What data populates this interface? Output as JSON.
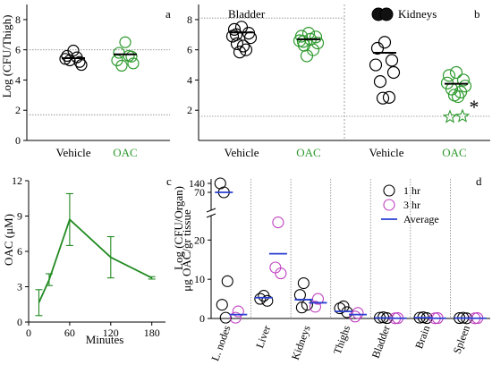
{
  "colors": {
    "black": "#000000",
    "green": "#2e9a2e",
    "magenta": "#c040c0",
    "blue": "#2a3fd0",
    "line_green": "#228b22",
    "dotted": "#888888"
  },
  "chart_data": [
    {
      "panel": "a",
      "type": "scatter",
      "ylabel": "Log (CFU/Thigh)",
      "ylim": [
        0,
        9
      ],
      "yticks": [
        "0",
        "2",
        "4",
        "6",
        "8"
      ],
      "reference_lines": [
        6.0,
        1.7
      ],
      "groups": [
        {
          "name": "Vehicle",
          "color": "black",
          "values": [
            5.95,
            5.6,
            5.2,
            5.4,
            5.0,
            5.3,
            5.5
          ],
          "mean": 5.45
        },
        {
          "name": "OAC",
          "color": "green",
          "values": [
            6.5,
            5.8,
            5.55,
            5.3,
            5.1,
            4.95,
            5.6
          ],
          "mean": 5.7
        }
      ]
    },
    {
      "panel": "b",
      "type": "scatter",
      "ylabel": "Log (CFU/Organ)",
      "ylim": [
        0,
        9
      ],
      "yticks": [
        "2",
        "4",
        "6",
        "8"
      ],
      "section_titles": [
        "Bladder",
        "Kidneys"
      ],
      "reference_lines": [
        8.1,
        1.6
      ],
      "significance_marker": "*",
      "groups": [
        {
          "organ": "Bladder",
          "name": "Vehicle",
          "color": "black",
          "values": [
            7.5,
            7.35,
            7.1,
            6.9,
            6.8,
            6.4,
            6.0,
            5.85,
            6.25,
            7.0
          ],
          "mean": 7.15
        },
        {
          "organ": "Bladder",
          "name": "OAC",
          "color": "green",
          "values": [
            7.1,
            6.9,
            6.85,
            6.6,
            6.45,
            6.3,
            6.0,
            5.6,
            6.7,
            6.55
          ],
          "mean": 6.7
        },
        {
          "organ": "Kidneys",
          "name": "Vehicle",
          "color": "black",
          "values": [
            6.5,
            6.1,
            5.3,
            5.0,
            4.5,
            3.9,
            2.85,
            2.8
          ],
          "mean": 5.8,
          "above_range_count": 2
        },
        {
          "organ": "Kidneys",
          "name": "OAC",
          "color": "green",
          "values": [
            4.5,
            4.3,
            4.0,
            3.8,
            3.6,
            3.4,
            3.2,
            3.0,
            2.9,
            1.6,
            1.55
          ],
          "mean": 3.75
        }
      ]
    },
    {
      "panel": "c",
      "type": "line",
      "xlabel": "Minutes",
      "ylabel": "OAC (μM)",
      "x": [
        15,
        30,
        60,
        120,
        180
      ],
      "y": [
        1.65,
        3.6,
        8.7,
        5.5,
        3.75
      ],
      "error": [
        1.1,
        0.5,
        2.2,
        1.75,
        0.1
      ],
      "xlim": [
        0,
        200
      ],
      "ylim": [
        0,
        12
      ],
      "xticks": [
        "0",
        "60",
        "120",
        "180"
      ],
      "yticks": [
        "0",
        "3",
        "6",
        "9",
        "12"
      ]
    },
    {
      "panel": "d",
      "type": "scatter",
      "ylabel": "μg OAC/gr tissue",
      "categories": [
        "L. nodes",
        "Liver",
        "Kidneys",
        "Thighs",
        "Bladder",
        "Brain",
        "Spleen"
      ],
      "yticks_lower": [
        "0",
        "10",
        "20"
      ],
      "yticks_upper": [
        "70",
        "140"
      ],
      "legend": [
        "1 hr",
        "3 hr",
        "Average"
      ],
      "legend_position": "top-right",
      "axis_break": true,
      "series": [
        {
          "name": "1 hr",
          "color": "black",
          "values": [
            [
              70,
              140,
              9.5,
              3.5,
              0.2
            ],
            [
              5.8,
              5.0,
              4.5
            ],
            [
              9.0,
              6.0,
              3.5,
              2.8
            ],
            [
              3.1,
              2.6,
              1.6
            ],
            [
              0.3,
              0.2,
              0.1
            ],
            [
              0.3,
              0.2,
              0.1
            ],
            [
              0.2,
              0.1,
              0.05
            ]
          ]
        },
        {
          "name": "3 hr",
          "color": "magenta",
          "values": [
            [
              1.8,
              0.2
            ],
            [
              24.5,
              13.0,
              11.5
            ],
            [
              5.0,
              3.0
            ],
            [
              1.4,
              0.5
            ],
            [
              0.1,
              0.05
            ],
            [
              0.1,
              0.05
            ],
            [
              0.1,
              0.05
            ]
          ]
        },
        {
          "name": "Average",
          "color": "blue",
          "values": [
            [
              61,
              1.0
            ],
            [
              5.3,
              16.5
            ],
            [
              4.8,
              4.0
            ],
            [
              1.8,
              1.0
            ],
            [
              0.15,
              0.05
            ],
            [
              0.2,
              0.05
            ],
            [
              0.1,
              0.05
            ]
          ]
        }
      ]
    }
  ]
}
